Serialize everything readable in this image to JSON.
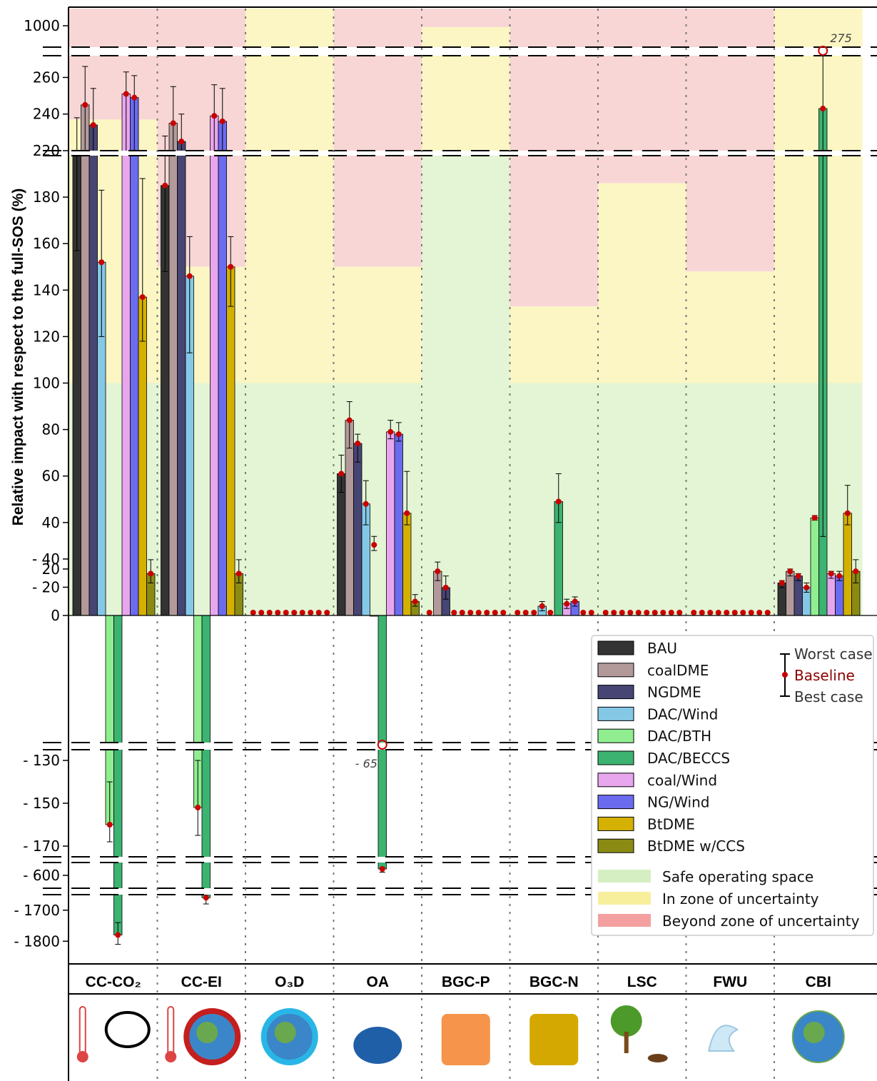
{
  "chart_data": {
    "type": "bar",
    "ylabel": "Relative impact with respect to the full-SOS (%)",
    "categories": [
      "CC-CO₂",
      "CC-EI",
      "O₃D",
      "OA",
      "BGC-P",
      "BGC-N",
      "LSC",
      "FWU",
      "CBI"
    ],
    "tick_labels": [
      "1000",
      "260",
      "240",
      "220",
      "180",
      "160",
      "140",
      "120",
      "100",
      "80",
      "60",
      "40",
      "20",
      "0",
      "- 20",
      "- 40",
      "- 130",
      "- 150",
      "- 170",
      "- 600",
      "- 1700",
      "- 1800"
    ],
    "series": [
      {
        "name": "BAU",
        "color": "#333333",
        "baseline": [
          212,
          185,
          1,
          61,
          1,
          1,
          1,
          0.5,
          14
        ],
        "worst": [
          238,
          228,
          1,
          69,
          1,
          1,
          1,
          0.5,
          15
        ],
        "best": [
          157,
          148,
          1,
          53,
          1,
          1,
          1,
          0.5,
          12
        ]
      },
      {
        "name": "coalDME",
        "color": "#b39a9a",
        "baseline": [
          245,
          235,
          1,
          84,
          19,
          1,
          1,
          1,
          19
        ],
        "worst": [
          266,
          255,
          1,
          92,
          23,
          1,
          1,
          1,
          20
        ],
        "best": [
          217,
          217,
          1,
          72,
          15,
          1,
          1,
          1,
          17
        ]
      },
      {
        "name": "NGDME",
        "color": "#474573",
        "baseline": [
          234,
          225,
          1,
          74,
          12,
          1,
          1,
          1,
          17
        ],
        "worst": [
          254,
          240,
          1,
          78,
          17,
          1,
          1,
          1,
          18
        ],
        "best": [
          217,
          209,
          1,
          66,
          7,
          1,
          1,
          1,
          15
        ]
      },
      {
        "name": "DAC/Wind",
        "color": "#85c8e6",
        "baseline": [
          152,
          146,
          1,
          48,
          1,
          4,
          1,
          1,
          12
        ],
        "worst": [
          183,
          163,
          1,
          58,
          1,
          6,
          1,
          1,
          14
        ],
        "best": [
          120,
          113,
          1,
          39,
          1,
          2,
          1,
          1,
          10
        ]
      },
      {
        "name": "DAC/BTH",
        "color": "#90ee90",
        "baseline": [
          -160,
          -152,
          1,
          -50,
          1,
          1,
          1,
          1,
          42
        ],
        "worst": [
          -140,
          -130,
          1,
          -46,
          1,
          1,
          1,
          1,
          43
        ],
        "best": [
          -168,
          -165,
          1,
          -56,
          1,
          1,
          1,
          1,
          41
        ]
      },
      {
        "name": "DAC/BECCS",
        "color": "#3cb371",
        "baseline": [
          -1780,
          -1660,
          2,
          -590,
          1,
          49,
          1,
          1,
          243
        ],
        "worst": [
          -1740,
          -1650,
          2,
          -588,
          1,
          61,
          1,
          1,
          275
        ],
        "best": [
          -1810,
          -1680,
          2,
          -595,
          1,
          40,
          1,
          1,
          34
        ]
      },
      {
        "name": "coal/Wind",
        "color": "#e8a6ee",
        "baseline": [
          251,
          239,
          1,
          79,
          1,
          5,
          1,
          1,
          18
        ],
        "worst": [
          263,
          256,
          1,
          84,
          1,
          7,
          1,
          1,
          19
        ],
        "best": [
          217,
          217,
          1,
          76,
          1,
          3,
          1,
          1,
          16
        ]
      },
      {
        "name": "NG/Wind",
        "color": "#6b6bf0",
        "baseline": [
          249,
          236,
          1,
          78,
          1,
          6,
          1,
          1,
          17
        ],
        "worst": [
          261,
          254,
          1,
          83,
          1,
          8,
          1,
          1,
          19
        ],
        "best": [
          217,
          209,
          1,
          75,
          1,
          4,
          1,
          1,
          15
        ]
      },
      {
        "name": "BtDME",
        "color": "#d4b000",
        "baseline": [
          137,
          150,
          1,
          44,
          1,
          2,
          1,
          1,
          44
        ],
        "worst": [
          188,
          163,
          1,
          62,
          1,
          2,
          1,
          1,
          56
        ],
        "best": [
          118,
          133,
          1,
          39,
          1,
          2,
          1,
          1,
          39
        ]
      },
      {
        "name": "BtDME w/CCS",
        "color": "#8b8b14",
        "baseline": [
          18,
          18,
          1,
          6,
          1,
          2,
          1,
          1,
          19
        ],
        "worst": [
          24,
          24,
          1,
          9,
          1,
          2,
          1,
          1,
          24
        ],
        "best": [
          14,
          14,
          1,
          4,
          1,
          2,
          1,
          1,
          14
        ]
      }
    ],
    "zones": [
      {
        "name": "Safe operating space",
        "color": "#e3f5d4"
      },
      {
        "name": "In zone of uncertainty",
        "color": "#fbf6c3"
      },
      {
        "name": "Beyond zone of uncertainty",
        "color": "#f8d6d6"
      }
    ],
    "zone_upper_limits": [
      237,
      150,
      1500,
      150,
      960,
      133,
      186,
      148,
      1500
    ],
    "zone_lower_limits": [
      100,
      100,
      100,
      100,
      220,
      100,
      100,
      100,
      100
    ],
    "callouts": [
      {
        "label": "275",
        "category": "CBI",
        "value": 275
      },
      {
        "label": "- 65",
        "category": "OA",
        "value": -65
      }
    ],
    "legend_errorbar": {
      "worst": "Worst case",
      "baseline": "Baseline",
      "best": "Best case"
    },
    "legend_position": "lower-right",
    "grid": false
  }
}
